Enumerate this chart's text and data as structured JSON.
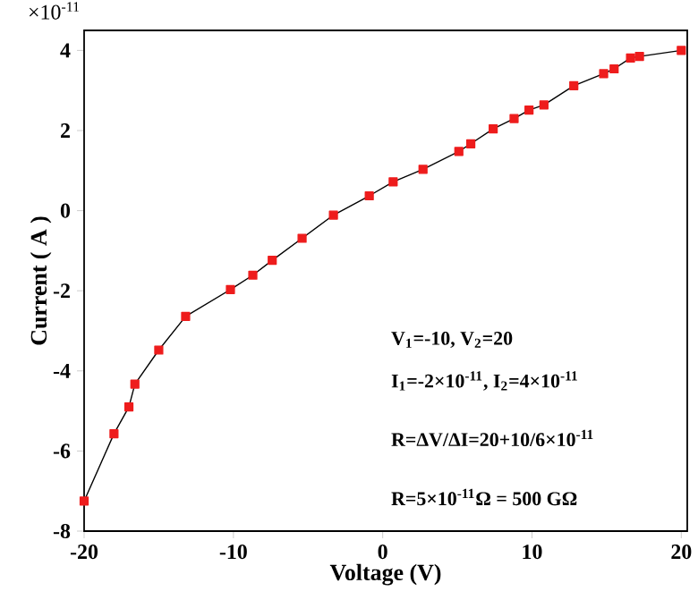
{
  "chart_data": {
    "type": "line",
    "xlabel": "Voltage (V)",
    "ylabel": "Current ( A )",
    "annotations": [
      "×10$^{-11}$",
      "V$_{1}$=-10, V$_{2}$=20",
      "I$_{1}$=-2×10$^{-11}$,  I$_{2}$=4×10$^{-11}$",
      "R=ΔV/ΔI=20+10/6×10$^{-11}$",
      "R=5×10$^{-11}$Ω = 500 GΩ"
    ],
    "x": [
      -20,
      -18.0,
      -17.0,
      -16.6,
      -15.0,
      -13.2,
      -10.2,
      -8.7,
      -7.4,
      -5.4,
      -3.3,
      -0.9,
      0.7,
      2.7,
      5.1,
      5.9,
      7.4,
      8.8,
      9.8,
      10.8,
      12.8,
      14.8,
      15.5,
      16.6,
      17.2,
      20.0
    ],
    "series": [
      {
        "color": "#ee1c1c",
        "values": [
          -7.25,
          -5.57,
          -4.9,
          -4.33,
          -3.48,
          -2.64,
          -1.97,
          -1.61,
          -1.24,
          -0.69,
          -0.11,
          0.37,
          0.72,
          1.03,
          1.48,
          1.67,
          2.04,
          2.3,
          2.51,
          2.64,
          3.12,
          3.42,
          3.54,
          3.81,
          3.85,
          4.0
        ]
      }
    ],
    "xlim": [
      -20,
      20.4
    ],
    "ylim": [
      -8,
      4.5
    ],
    "xticks": [
      -20,
      -10,
      0,
      10,
      20
    ],
    "yticks": [
      -8,
      -6,
      -4,
      -2,
      0,
      2,
      4
    ],
    "marker": "square",
    "line_style": "solid"
  }
}
